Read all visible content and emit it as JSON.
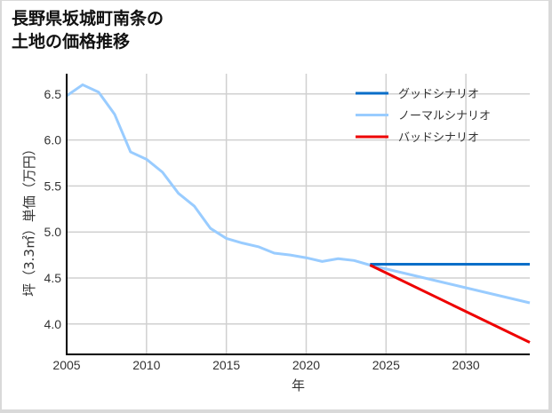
{
  "title_line1": "長野県坂城町南条の",
  "title_line2": "土地の価格推移",
  "chart_data": {
    "type": "line",
    "title": "長野県坂城町南条の土地の価格推移",
    "xlabel": "年",
    "ylabel": "坪（3.3㎡）単価（万円）",
    "xlim": [
      2005,
      2034
    ],
    "ylim": [
      3.67,
      6.72
    ],
    "xticks": [
      2005,
      2010,
      2015,
      2020,
      2025,
      2030
    ],
    "xtick_labels": [
      "2005",
      "2010",
      "2015",
      "2020",
      "2025",
      "2030"
    ],
    "yticks": [
      4.0,
      4.5,
      5.0,
      5.5,
      6.0,
      6.5
    ],
    "ytick_labels": [
      "4.0",
      "4.5",
      "5.0",
      "5.5",
      "6.0",
      "6.5"
    ],
    "grid": true,
    "legend_position": "upper right",
    "series": [
      {
        "name": "グッドシナリオ",
        "color": "#0a6ec8",
        "x": [
          2024,
          2034
        ],
        "values": [
          4.65,
          4.65
        ]
      },
      {
        "name": "ノーマルシナリオ",
        "color": "#99ccff",
        "x": [
          2005,
          2006,
          2007,
          2008,
          2009,
          2010,
          2011,
          2012,
          2013,
          2014,
          2015,
          2016,
          2017,
          2018,
          2019,
          2020,
          2021,
          2022,
          2023,
          2024,
          2034
        ],
        "values": [
          6.48,
          6.6,
          6.52,
          6.28,
          5.87,
          5.79,
          5.65,
          5.42,
          5.28,
          5.04,
          4.93,
          4.88,
          4.84,
          4.77,
          4.75,
          4.72,
          4.68,
          4.71,
          4.69,
          4.64,
          4.23
        ]
      },
      {
        "name": "バッドシナリオ",
        "color": "#ee0000",
        "x": [
          2024,
          2034
        ],
        "values": [
          4.64,
          3.8
        ]
      }
    ]
  }
}
